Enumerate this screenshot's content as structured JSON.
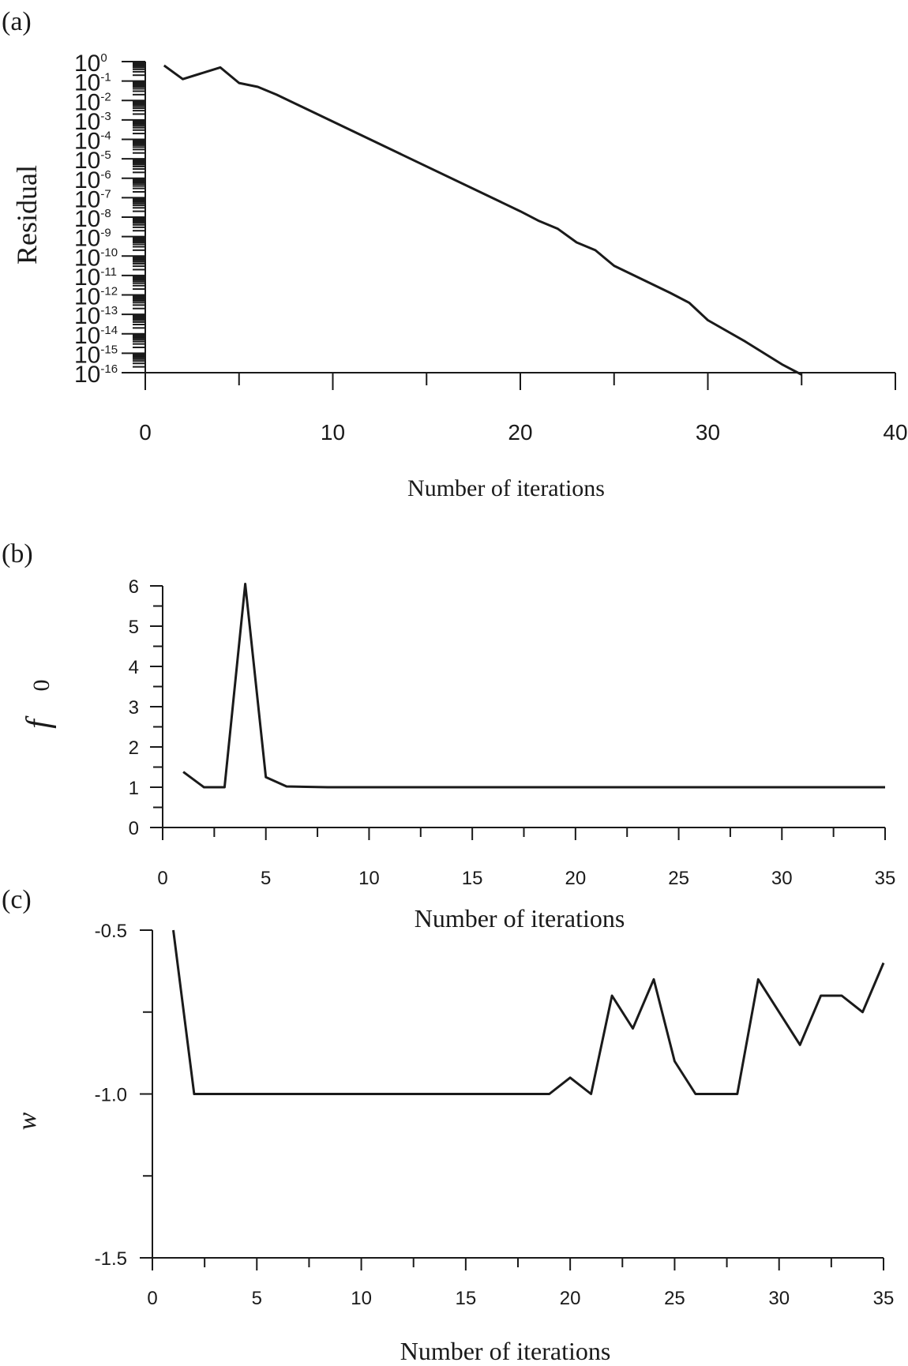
{
  "chart_data": [
    {
      "type": "line",
      "panel_label": "(a)",
      "xlabel": "Number of iterations",
      "ylabel": "Residual",
      "yscale": "log",
      "xlim": [
        0,
        40
      ],
      "ylim_exponent": [
        -16,
        0
      ],
      "xticks": [
        "0",
        "10",
        "20",
        "30",
        "40"
      ],
      "ytick_base": "10",
      "ytick_exponents": [
        "0",
        "-1",
        "-2",
        "-3",
        "-4",
        "-5",
        "-6",
        "-7",
        "-8",
        "-9",
        "-10",
        "-11",
        "-12",
        "-13",
        "-14",
        "-15",
        "-16"
      ],
      "series": [
        {
          "x": [
            1,
            2,
            4,
            5,
            6,
            7,
            20,
            21,
            22,
            23,
            24,
            25,
            28,
            29,
            30,
            32,
            34,
            35
          ],
          "log10_y": [
            -0.2,
            -0.9,
            -0.3,
            -1.1,
            -1.3,
            -1.7,
            -7.7,
            -8.2,
            -8.6,
            -9.3,
            -9.7,
            -10.5,
            -11.9,
            -12.4,
            -13.3,
            -14.4,
            -15.6,
            -16.1
          ]
        }
      ]
    },
    {
      "type": "line",
      "panel_label": "(b)",
      "xlabel": "Number of iterations",
      "ylabel_main": "f",
      "ylabel_sub": "0",
      "xlim": [
        0,
        35
      ],
      "ylim": [
        0,
        6
      ],
      "xticks": [
        "0",
        "5",
        "10",
        "15",
        "20",
        "25",
        "30",
        "35"
      ],
      "yticks": [
        "0",
        "1",
        "2",
        "3",
        "4",
        "5",
        "6"
      ],
      "series": [
        {
          "x": [
            1,
            2,
            3,
            4,
            5,
            6,
            8,
            35
          ],
          "y": [
            1.38,
            1.0,
            1.0,
            6.05,
            1.25,
            1.02,
            1.0,
            1.0
          ]
        }
      ]
    },
    {
      "type": "line",
      "panel_label": "(c)",
      "xlabel": "Number of iterations",
      "ylabel": "w",
      "xlim": [
        0,
        35
      ],
      "ylim": [
        -1.5,
        -0.5
      ],
      "xticks": [
        "0",
        "5",
        "10",
        "15",
        "20",
        "25",
        "30",
        "35"
      ],
      "yticks": [
        "-1.5",
        "-1.0",
        "-0.5"
      ],
      "series": [
        {
          "x": [
            1,
            2,
            19,
            20,
            21,
            22,
            23,
            24,
            25,
            26,
            28,
            29,
            31,
            32,
            33,
            34,
            35
          ],
          "y": [
            -0.5,
            -1.0,
            -1.0,
            -0.95,
            -1.0,
            -0.7,
            -0.8,
            -0.65,
            -0.9,
            -1.0,
            -1.0,
            -0.65,
            -0.85,
            -0.7,
            -0.7,
            -0.75,
            -0.6
          ]
        }
      ]
    }
  ]
}
